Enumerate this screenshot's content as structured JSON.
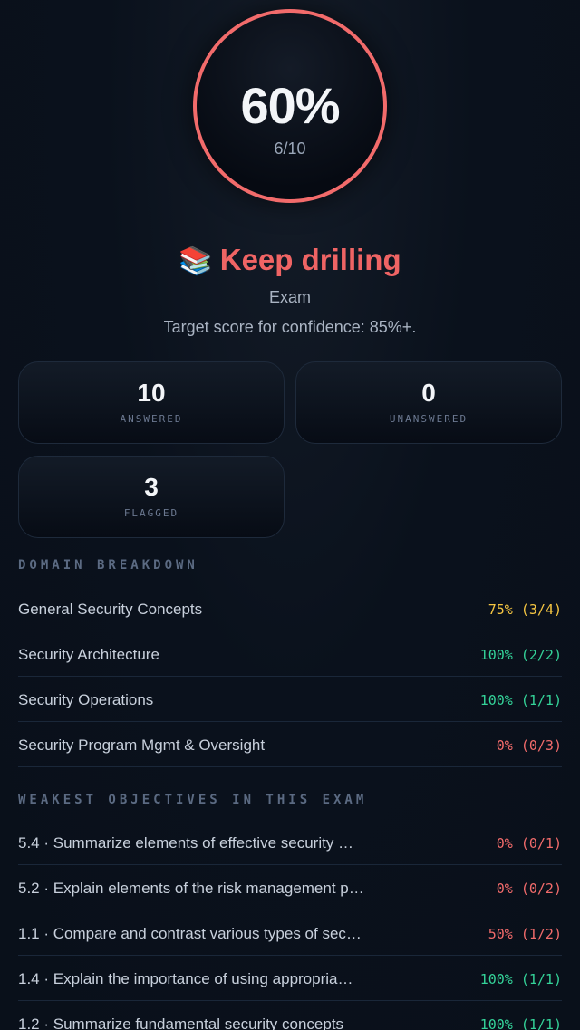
{
  "score": {
    "percent": "60%",
    "fraction": "6/10",
    "ring_color": "#f26b6b"
  },
  "verdict": {
    "emoji": "📚",
    "icon": "books-icon",
    "text": "Keep drilling",
    "color": "#ef6464"
  },
  "mode": "Exam",
  "target": "Target score for confidence: 85%+.",
  "stats": [
    {
      "value": "10",
      "label": "ANSWERED"
    },
    {
      "value": "0",
      "label": "UNANSWERED"
    },
    {
      "value": "3",
      "label": "FLAGGED"
    }
  ],
  "domain_breakdown": {
    "title": "DOMAIN BREAKDOWN",
    "rows": [
      {
        "name": "General Security Concepts",
        "value": "75% (3/4)",
        "color": "#f5c542"
      },
      {
        "name": "Security Architecture",
        "value": "100% (2/2)",
        "color": "#34d399"
      },
      {
        "name": "Security Operations",
        "value": "100% (1/1)",
        "color": "#34d399"
      },
      {
        "name": "Security Program Mgmt & Oversight",
        "value": "0% (0/3)",
        "color": "#f26b6b"
      }
    ]
  },
  "weakest": {
    "title": "WEAKEST OBJECTIVES IN THIS EXAM",
    "rows": [
      {
        "name": "5.4 · Summarize elements of effective security …",
        "value": "0% (0/1)",
        "color": "#f26b6b"
      },
      {
        "name": "5.2 · Explain elements of the risk management p…",
        "value": "0% (0/2)",
        "color": "#f26b6b"
      },
      {
        "name": "1.1 · Compare and contrast various types of sec…",
        "value": "50% (1/2)",
        "color": "#f26b6b"
      },
      {
        "name": "1.4 · Explain the importance of using appropria…",
        "value": "100% (1/1)",
        "color": "#34d399"
      },
      {
        "name": "1.2 · Summarize fundamental security concepts",
        "value": "100% (1/1)",
        "color": "#34d399"
      }
    ]
  }
}
